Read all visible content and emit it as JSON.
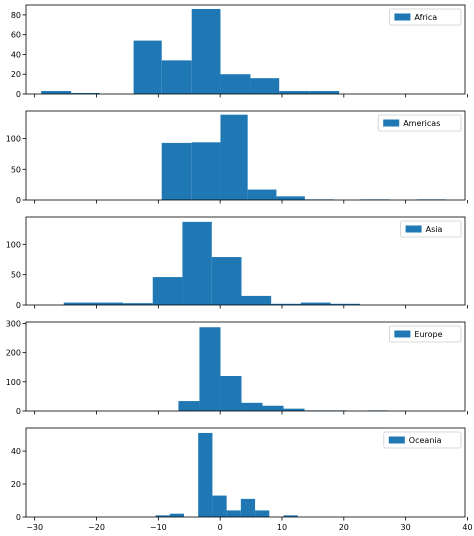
{
  "chart_data": [
    {
      "type": "bar",
      "title": "",
      "legend": {
        "label": "Africa",
        "placement": "top-right"
      },
      "color": "#1f77b4",
      "bins": [
        {
          "x0": -28.95,
          "x1": -24.1,
          "value": 3
        },
        {
          "x0": -24.1,
          "x1": -19.45,
          "value": 1
        },
        {
          "x0": -14.0,
          "x1": -9.45,
          "value": 54
        },
        {
          "x0": -9.45,
          "x1": -4.6,
          "value": 34
        },
        {
          "x0": -4.6,
          "x1": 0.05,
          "value": 86
        },
        {
          "x0": 0.05,
          "x1": 4.9,
          "value": 20
        },
        {
          "x0": 4.9,
          "x1": 9.55,
          "value": 16
        },
        {
          "x0": 9.55,
          "x1": 14.4,
          "value": 3
        },
        {
          "x0": 14.4,
          "x1": 19.25,
          "value": 3
        }
      ],
      "yticks": [
        0,
        20,
        40,
        60,
        80
      ],
      "ylim": [
        0,
        90
      ],
      "xlim": [
        -31.4,
        39.6
      ]
    },
    {
      "type": "bar",
      "title": "",
      "legend": {
        "label": "Americas",
        "placement": "top-right"
      },
      "color": "#1f77b4",
      "bins": [
        {
          "x0": -9.45,
          "x1": -4.6,
          "value": 93
        },
        {
          "x0": -4.6,
          "x1": 0.05,
          "value": 94
        },
        {
          "x0": 0.05,
          "x1": 4.45,
          "value": 139
        },
        {
          "x0": 4.45,
          "x1": 9.1,
          "value": 17
        },
        {
          "x0": 9.1,
          "x1": 13.7,
          "value": 6
        },
        {
          "x0": 13.7,
          "x1": 18.4,
          "value": 1
        },
        {
          "x0": 22.7,
          "x1": 27.4,
          "value": 1
        },
        {
          "x0": 31.8,
          "x1": 36.5,
          "value": 1
        }
      ],
      "yticks": [
        0,
        50,
        100
      ],
      "ylim": [
        0,
        145
      ],
      "xlim": [
        -31.4,
        39.6
      ]
    },
    {
      "type": "bar",
      "title": "",
      "legend": {
        "label": "Asia",
        "placement": "top-right"
      },
      "color": "#1f77b4",
      "bins": [
        {
          "x0": -25.3,
          "x1": -20.5,
          "value": 4
        },
        {
          "x0": -20.5,
          "x1": -15.7,
          "value": 4
        },
        {
          "x0": -15.7,
          "x1": -10.9,
          "value": 3
        },
        {
          "x0": -10.9,
          "x1": -6.1,
          "value": 46
        },
        {
          "x0": -6.1,
          "x1": -1.35,
          "value": 137
        },
        {
          "x0": -1.35,
          "x1": 3.45,
          "value": 79
        },
        {
          "x0": 3.45,
          "x1": 8.25,
          "value": 15
        },
        {
          "x0": 8.25,
          "x1": 13.05,
          "value": 2
        },
        {
          "x0": 13.05,
          "x1": 17.85,
          "value": 4
        },
        {
          "x0": 17.85,
          "x1": 22.6,
          "value": 2
        }
      ],
      "yticks": [
        0,
        50,
        100
      ],
      "ylim": [
        0,
        145
      ],
      "xlim": [
        -31.4,
        39.6
      ]
    },
    {
      "type": "bar",
      "title": "",
      "legend": {
        "label": "Europe",
        "placement": "top-right"
      },
      "color": "#1f77b4",
      "bins": [
        {
          "x0": -6.75,
          "x1": -3.35,
          "value": 34
        },
        {
          "x0": -3.35,
          "x1": 0.05,
          "value": 287
        },
        {
          "x0": 0.05,
          "x1": 3.45,
          "value": 120
        },
        {
          "x0": 3.45,
          "x1": 6.85,
          "value": 28
        },
        {
          "x0": 6.85,
          "x1": 10.25,
          "value": 18
        },
        {
          "x0": 10.25,
          "x1": 13.65,
          "value": 8
        },
        {
          "x0": 13.65,
          "x1": 17.05,
          "value": 2
        },
        {
          "x0": 17.05,
          "x1": 20.45,
          "value": 2
        },
        {
          "x0": 23.85,
          "x1": 27.25,
          "value": 2
        }
      ],
      "yticks": [
        0,
        100,
        200,
        300
      ],
      "ylim": [
        0,
        305
      ],
      "xlim": [
        -31.4,
        39.6
      ]
    },
    {
      "type": "bar",
      "title": "",
      "legend": {
        "label": "Oceania",
        "placement": "top-right"
      },
      "color": "#1f77b4",
      "bins": [
        {
          "x0": -10.45,
          "x1": -8.15,
          "value": 1
        },
        {
          "x0": -8.15,
          "x1": -5.85,
          "value": 2
        },
        {
          "x0": -3.55,
          "x1": -1.25,
          "value": 51
        },
        {
          "x0": -1.25,
          "x1": 1.05,
          "value": 13
        },
        {
          "x0": 1.05,
          "x1": 3.35,
          "value": 4
        },
        {
          "x0": 3.35,
          "x1": 5.65,
          "value": 11
        },
        {
          "x0": 5.65,
          "x1": 7.95,
          "value": 4
        },
        {
          "x0": 10.25,
          "x1": 12.55,
          "value": 1
        }
      ],
      "yticks": [
        0,
        20,
        40
      ],
      "ylim": [
        0,
        54
      ],
      "xlim": [
        -31.4,
        39.6
      ]
    }
  ],
  "xaxis": {
    "ticks": [
      -30,
      -20,
      -10,
      0,
      10,
      20,
      30,
      40
    ],
    "tick_labels": [
      "−30",
      "−20",
      "−10",
      "0",
      "10",
      "20",
      "30",
      "40"
    ],
    "shared": true
  }
}
